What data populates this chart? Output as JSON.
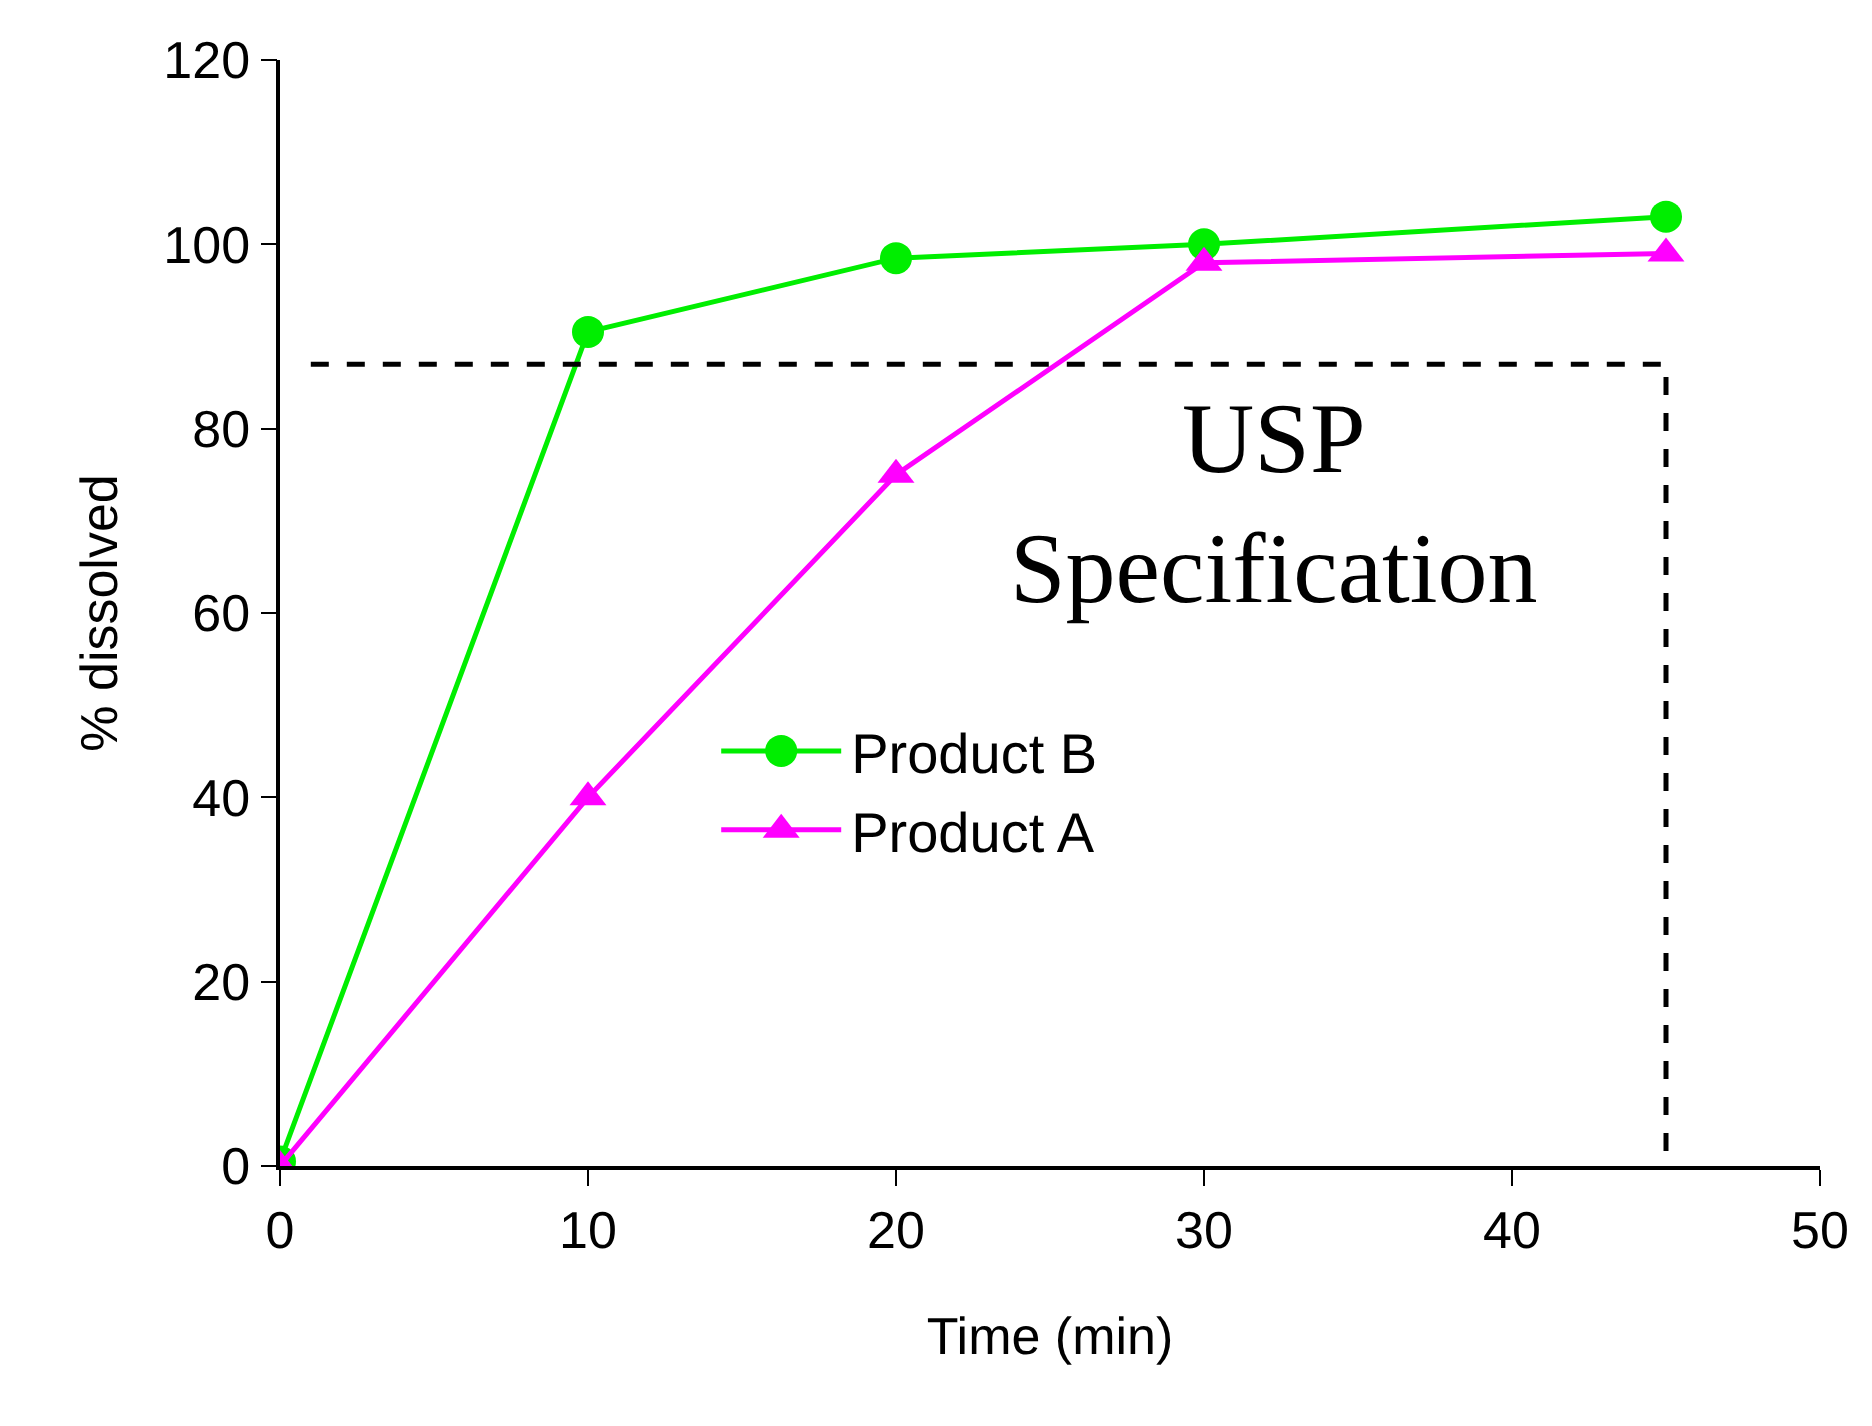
{
  "chart_data": {
    "type": "line",
    "xlabel": "Time (min)",
    "ylabel": "% dissolved",
    "xlim": [
      0,
      50
    ],
    "xticks": [
      0,
      10,
      20,
      30,
      40,
      50
    ],
    "ylim": [
      0,
      120
    ],
    "yticks": [
      0,
      20,
      40,
      60,
      80,
      100,
      120
    ],
    "legend": "center",
    "line_style": "solid",
    "series": [
      {
        "name": "Product B",
        "color": "#00ee00",
        "marker": "circle",
        "x": [
          0,
          10,
          20,
          30,
          45
        ],
        "values": [
          0.5,
          90.5,
          98.5,
          100,
          103
        ]
      },
      {
        "name": "Product A",
        "color": "#ff00ff",
        "marker": "triangle",
        "x": [
          0,
          10,
          20,
          30,
          45
        ],
        "values": [
          0,
          40,
          75,
          98,
          99
        ]
      },
      {
        "color": "#000000",
        "marker": "none",
        "line_style": "dashed",
        "x": [
          1,
          45,
          45
        ],
        "values": [
          87,
          87,
          1
        ]
      }
    ],
    "annotations": [
      "USP Specification"
    ]
  }
}
